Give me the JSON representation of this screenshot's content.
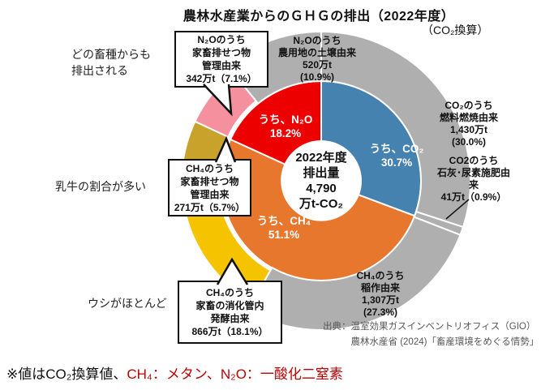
{
  "title": "農林水産業からのＧＨＧの排出（2022年度）",
  "subtitle": "（CO₂換算）",
  "center_label": "2022年度\n排出量\n4,790\n万t-CO₂",
  "segment_labels": {
    "inner_co2": "うち、CO₂\n30.7%",
    "inner_ch4": "うち、CH₄\n51.1%",
    "inner_n2o": "うち、N₂O\n18.2%",
    "n2o_soil": "N₂Oのうち\n農用地の土壌由来\n520万t\n(10.9%)",
    "co2_fuel": "CO₂のうち\n燃料燃焼由来\n1,430万t\n(30.0%)",
    "co2_lime": "CO2のうち\n石灰･尿素施肥由来\n41万t（0.9%）",
    "ch4_rice": "CH₄のうち\n稲作由来\n1,307万t\n(27.3%)"
  },
  "callouts": {
    "n2o_manure": "N₂Oのうち\n家畜排せつ物\n管理由来\n342万t（7.1%）",
    "ch4_manure": "CH₄のうち\n家畜排せつ物\n管理由来\n271万t（5.7%）",
    "ch4_enteric": "CH₄のうち\n家畜の消化管内\n発酵由来\n866万t（18.1%）"
  },
  "annotations": {
    "left_top": "どの畜種からも\n排出される",
    "left_middle": "乳牛の割合が多い",
    "left_bottom": "ウシがほとんど"
  },
  "source": "出典：温室効果ガスインベントリオフィス（GIO）\n　　　農林水産省 (2024)「畜産環境をめぐる情勢」",
  "note": {
    "prefix": "※値はCO₂換算値、",
    "highlight": "CH₄：メタン、N₂O：一酸化二窒素"
  },
  "colors": {
    "co2_blue": "#4682b0",
    "ch4_orange": "#e8772e",
    "n2o_red": "#ec0000",
    "gray": "#afafaf",
    "enteric_yellow": "#f5c300",
    "manure_gold": "#c8a22b",
    "manure_pink": "#f5919e",
    "note_red": "#c00000"
  },
  "chart_data": {
    "type": "pie",
    "variant": "nested-donut",
    "title": "農林水産業からのＧＨＧの排出（2022年度）",
    "unit": "CO₂換算",
    "total": "4,790万t-CO₂",
    "year": "2022年度",
    "inner_ring": [
      {
        "key": "co2",
        "gas": "CO₂",
        "pct": 30.7,
        "color": "#4682b0"
      },
      {
        "key": "ch4",
        "gas": "CH₄",
        "pct": 51.1,
        "color": "#e8772e"
      },
      {
        "key": "n2o",
        "gas": "N₂O",
        "pct": 18.2,
        "color": "#ec0000"
      }
    ],
    "outer_ring": [
      {
        "key": "co2-fuel",
        "label": "CO₂のうち燃料燃焼由来",
        "amount": "1,430万t",
        "pct": 30.0,
        "color": "#afafaf",
        "livestock": false
      },
      {
        "key": "co2-lime",
        "label": "CO2のうち石灰･尿素施肥由来",
        "amount": "41万t",
        "pct": 0.9,
        "color": "#afafaf",
        "livestock": false
      },
      {
        "key": "ch4-rice",
        "label": "CH₄のうち稲作由来",
        "amount": "1,307万t",
        "pct": 27.3,
        "color": "#afafaf",
        "livestock": false
      },
      {
        "key": "ch4-enteric",
        "label": "CH₄のうち家畜の消化管内発酵由来",
        "amount": "866万t",
        "pct": 18.1,
        "color": "#f5c300",
        "livestock": true
      },
      {
        "key": "ch4-manure",
        "label": "CH₄のうち家畜排せつ物管理由来",
        "amount": "271万t",
        "pct": 5.7,
        "color": "#c8a22b",
        "livestock": true
      },
      {
        "key": "n2o-manure",
        "label": "N₂Oのうち家畜排せつ物管理由来",
        "amount": "342万t",
        "pct": 7.1,
        "color": "#f5919e",
        "livestock": true
      },
      {
        "key": "n2o-soil",
        "label": "N₂Oのうち農用地の土壌由来",
        "amount": "520万t",
        "pct": 10.9,
        "color": "#afafaf",
        "livestock": false
      }
    ],
    "layout": {
      "start_angle_deg": 0,
      "clockwise": true,
      "legend": false
    }
  }
}
